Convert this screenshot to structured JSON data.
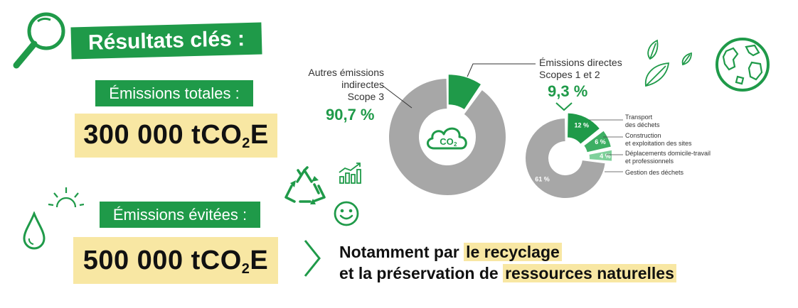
{
  "header": {
    "title": "Résultats clés :"
  },
  "emissions_totales": {
    "label": "Émissions totales :",
    "value_prefix": "300 000 tCO",
    "value_sub": "2",
    "value_suffix": "E"
  },
  "emissions_evitees": {
    "label": "Émissions évitées :",
    "value_prefix": "500 000 tCO",
    "value_sub": "2",
    "value_suffix": "E"
  },
  "co2_icon_text": {
    "main": "CO",
    "sub": "2"
  },
  "bottom_text": {
    "line1_plain": "Notamment par ",
    "line1_highlight": "le recyclage",
    "line2_plain": "et la préservation de ",
    "line2_highlight": "ressources naturelles"
  },
  "colors": {
    "green": "#1f9a49",
    "grey": "#a7a7a7",
    "yellow": "#f8e7a3",
    "light_green": "#7fd19b",
    "mid_green": "#3daf63"
  },
  "chart_data": [
    {
      "type": "pie",
      "title": "",
      "slices": [
        {
          "label_lines": [
            "Autres émissions",
            "indirectes",
            "Scope 3"
          ],
          "value": 90.7,
          "value_label": "90,7 %",
          "color": "#a7a7a7"
        },
        {
          "label_lines": [
            "Émissions directes",
            "Scopes 1 et 2"
          ],
          "value": 9.3,
          "value_label": "9,3 %",
          "color": "#1f9a49"
        }
      ]
    },
    {
      "type": "pie",
      "title": "",
      "slices": [
        {
          "label_lines": [
            "Transport",
            "des déchets"
          ],
          "value": 12,
          "value_label": "12 %",
          "color": "#1f9a49"
        },
        {
          "label_lines": [
            "Construction",
            "et exploitation des sites"
          ],
          "value": 6,
          "value_label": "6 %",
          "color": "#3daf63"
        },
        {
          "label_lines": [
            "Déplacements domicile-travail",
            "et professionnels"
          ],
          "value": 4,
          "value_label": "4 %",
          "color": "#7fd19b"
        },
        {
          "label_lines": [
            "Gestion des déchets"
          ],
          "value": 61,
          "value_label": "61 %",
          "color": "#a7a7a7"
        }
      ]
    }
  ],
  "icons": [
    "magnifier-icon",
    "sun-icon",
    "water-drop-icon",
    "recycle-icon",
    "growth-chart-icon",
    "smiley-icon",
    "leaf-icon",
    "globe-icon",
    "cloud-co2-icon",
    "chevron-right-icon"
  ]
}
